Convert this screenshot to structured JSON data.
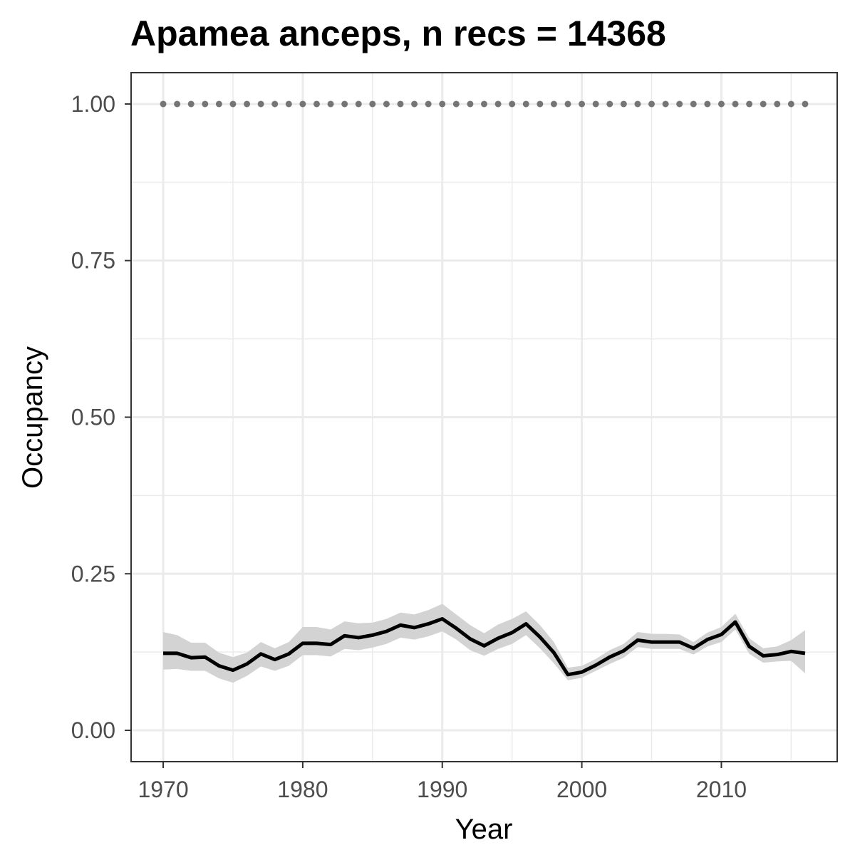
{
  "chart_data": {
    "type": "line",
    "title": "Apamea anceps, n recs = 14368",
    "xlabel": "Year",
    "ylabel": "Occupancy",
    "xlim": [
      1967.7,
      2018.3
    ],
    "ylim": [
      -0.05,
      1.05
    ],
    "x_ticks": [
      1970,
      1980,
      1990,
      2000,
      2010
    ],
    "x_tick_labels": [
      "1970",
      "1980",
      "1990",
      "2000",
      "2010"
    ],
    "y_ticks": [
      0,
      0.25,
      0.5,
      0.75,
      1.0
    ],
    "y_tick_labels": [
      "0.00",
      "0.25",
      "0.50",
      "0.75",
      "1.00"
    ],
    "grid": true,
    "colors": {
      "mean_line": "#000000",
      "ribbon": "#d3d3d3",
      "reference_points": "#757575",
      "grid": "#ebebeb",
      "panel_border": "#333333"
    },
    "series": [
      {
        "type": "line-with-ribbon",
        "x": [
          1970,
          1971,
          1972,
          1973,
          1974,
          1975,
          1976,
          1977,
          1978,
          1979,
          1980,
          1981,
          1982,
          1983,
          1984,
          1985,
          1986,
          1987,
          1988,
          1989,
          1990,
          1991,
          1992,
          1993,
          1994,
          1995,
          1996,
          1997,
          1998,
          1999,
          2000,
          2001,
          2002,
          2003,
          2004,
          2005,
          2006,
          2007,
          2008,
          2009,
          2010,
          2011,
          2012,
          2013,
          2014,
          2015,
          2016
        ],
        "y": [
          0.123,
          0.123,
          0.116,
          0.117,
          0.103,
          0.096,
          0.106,
          0.122,
          0.113,
          0.122,
          0.139,
          0.139,
          0.137,
          0.151,
          0.148,
          0.152,
          0.158,
          0.168,
          0.164,
          0.17,
          0.178,
          0.163,
          0.146,
          0.135,
          0.147,
          0.156,
          0.17,
          0.149,
          0.124,
          0.089,
          0.093,
          0.104,
          0.117,
          0.127,
          0.144,
          0.141,
          0.141,
          0.141,
          0.131,
          0.145,
          0.153,
          0.173,
          0.134,
          0.119,
          0.121,
          0.126,
          0.123
        ],
        "lower": [
          0.097,
          0.098,
          0.095,
          0.095,
          0.083,
          0.076,
          0.087,
          0.102,
          0.095,
          0.103,
          0.12,
          0.12,
          0.118,
          0.13,
          0.128,
          0.132,
          0.138,
          0.148,
          0.145,
          0.15,
          0.158,
          0.145,
          0.128,
          0.119,
          0.13,
          0.138,
          0.152,
          0.131,
          0.107,
          0.08,
          0.084,
          0.095,
          0.106,
          0.116,
          0.133,
          0.13,
          0.13,
          0.13,
          0.121,
          0.134,
          0.141,
          0.161,
          0.122,
          0.108,
          0.11,
          0.111,
          0.091
        ],
        "upper": [
          0.157,
          0.152,
          0.14,
          0.14,
          0.124,
          0.117,
          0.124,
          0.141,
          0.131,
          0.141,
          0.165,
          0.165,
          0.161,
          0.174,
          0.171,
          0.172,
          0.178,
          0.188,
          0.185,
          0.192,
          0.202,
          0.185,
          0.168,
          0.155,
          0.169,
          0.178,
          0.19,
          0.168,
          0.141,
          0.1,
          0.103,
          0.114,
          0.128,
          0.138,
          0.157,
          0.154,
          0.154,
          0.153,
          0.141,
          0.156,
          0.165,
          0.186,
          0.147,
          0.131,
          0.134,
          0.144,
          0.16
        ]
      },
      {
        "type": "points",
        "x": [
          1970,
          1971,
          1972,
          1973,
          1974,
          1975,
          1976,
          1977,
          1978,
          1979,
          1980,
          1981,
          1982,
          1983,
          1984,
          1985,
          1986,
          1987,
          1988,
          1989,
          1990,
          1991,
          1992,
          1993,
          1994,
          1995,
          1996,
          1997,
          1998,
          1999,
          2000,
          2001,
          2002,
          2003,
          2004,
          2005,
          2006,
          2007,
          2008,
          2009,
          2010,
          2011,
          2012,
          2013,
          2014,
          2015,
          2016
        ],
        "y": [
          1,
          1,
          1,
          1,
          1,
          1,
          1,
          1,
          1,
          1,
          1,
          1,
          1,
          1,
          1,
          1,
          1,
          1,
          1,
          1,
          1,
          1,
          1,
          1,
          1,
          1,
          1,
          1,
          1,
          1,
          1,
          1,
          1,
          1,
          1,
          1,
          1,
          1,
          1,
          1,
          1,
          1,
          1,
          1,
          1,
          1,
          1
        ]
      }
    ]
  }
}
